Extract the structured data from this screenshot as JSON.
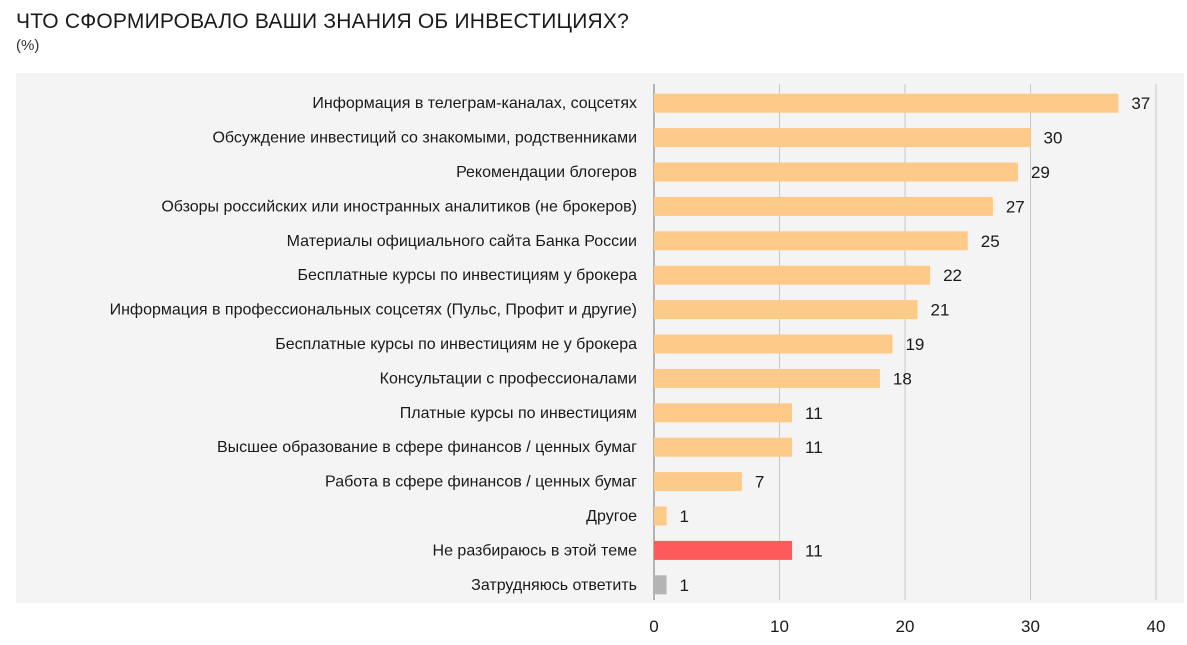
{
  "chart_data": {
    "type": "bar",
    "orientation": "horizontal",
    "title": "ЧТО СФОРМИРОВАЛО ВАШИ ЗНАНИЯ ОБ ИНВЕСТИЦИЯХ?",
    "subtitle": "(%)",
    "categories": [
      "Информация в телеграм-каналах, соцсетях",
      "Обсуждение инвестиций со знакомыми, родственниками",
      "Рекомендации блогеров",
      "Обзоры российских или иностранных аналитиков (не брокеров)",
      "Материалы официального сайта Банка России",
      "Бесплатные курсы по инвестициям у брокера",
      "Информация в профессиональных соцсетях (Пульс, Профит и другие)",
      "Бесплатные курсы по инвестициям не у брокера",
      "Консультации с профессионалами",
      "Платные курсы по инвестициям",
      "Высшее образование в сфере финансов / ценных бумаг",
      "Работа в сфере финансов / ценных бумаг",
      "Другое",
      "Не разбираюсь в этой теме",
      "Затрудняюсь ответить"
    ],
    "values": [
      37,
      30,
      29,
      27,
      25,
      22,
      21,
      19,
      18,
      11,
      11,
      7,
      1,
      11,
      1
    ],
    "bar_colors": [
      "#fdca8a",
      "#fdca8a",
      "#fdca8a",
      "#fdca8a",
      "#fdca8a",
      "#fdca8a",
      "#fdca8a",
      "#fdca8a",
      "#fdca8a",
      "#fdca8a",
      "#fdca8a",
      "#fdca8a",
      "#fdca8a",
      "#ff5a5a",
      "#b4b4b4"
    ],
    "xlim": [
      0,
      40
    ],
    "xticks": [
      "0",
      "10",
      "20",
      "30",
      "40"
    ],
    "grid": true,
    "xlabel": "",
    "ylabel": ""
  },
  "colors": {
    "panel_bg": "#f4f4f4",
    "grid": "#c8c8c8",
    "axis": "#888888"
  }
}
